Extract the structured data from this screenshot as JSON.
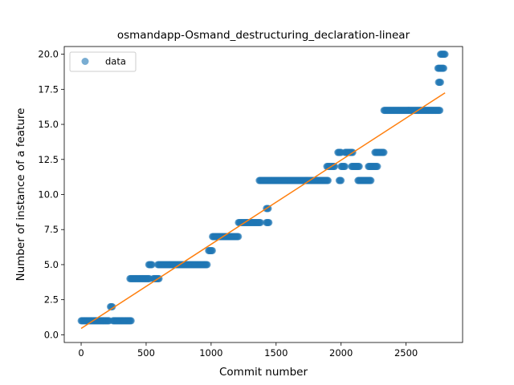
{
  "chart_data": {
    "type": "scatter",
    "title": "osmandapp-Osmand_destructuring_declaration-linear",
    "xlabel": "Commit number",
    "ylabel": "Number of instance of a feature",
    "xlim": [
      -130,
      2935
    ],
    "ylim": [
      -0.55,
      20.55
    ],
    "xticks": [
      0,
      500,
      1000,
      1500,
      2000,
      2500
    ],
    "xtick_labels": [
      "0",
      "500",
      "1000",
      "1500",
      "2000",
      "2500"
    ],
    "yticks": [
      0.0,
      2.5,
      5.0,
      7.5,
      10.0,
      12.5,
      15.0,
      17.5,
      20.0
    ],
    "ytick_labels": [
      "0.0",
      "2.5",
      "5.0",
      "7.5",
      "10.0",
      "12.5",
      "15.0",
      "17.5",
      "20.0"
    ],
    "grid": false,
    "legend_position": "upper-left",
    "series": [
      {
        "name": "data",
        "kind": "scatter",
        "color": "#1f77b4",
        "segments": [
          {
            "x_start": 0,
            "x_end": 215,
            "y": 1
          },
          {
            "x_start": 225,
            "x_end": 240,
            "y": 2
          },
          {
            "x_start": 245,
            "x_end": 385,
            "y": 1
          },
          {
            "x_start": 375,
            "x_end": 525,
            "y": 4
          },
          {
            "x_start": 520,
            "x_end": 545,
            "y": 5
          },
          {
            "x_start": 555,
            "x_end": 600,
            "y": 4
          },
          {
            "x_start": 590,
            "x_end": 970,
            "y": 5
          },
          {
            "x_start": 980,
            "x_end": 1010,
            "y": 6
          },
          {
            "x_start": 1010,
            "x_end": 1210,
            "y": 7
          },
          {
            "x_start": 1210,
            "x_end": 1380,
            "y": 8
          },
          {
            "x_start": 1425,
            "x_end": 1440,
            "y": 9
          },
          {
            "x_start": 1425,
            "x_end": 1445,
            "y": 8
          },
          {
            "x_start": 1370,
            "x_end": 1900,
            "y": 11
          },
          {
            "x_start": 1890,
            "x_end": 1950,
            "y": 12
          },
          {
            "x_start": 1975,
            "x_end": 2000,
            "y": 13
          },
          {
            "x_start": 1985,
            "x_end": 2000,
            "y": 11
          },
          {
            "x_start": 2000,
            "x_end": 2030,
            "y": 12
          },
          {
            "x_start": 2030,
            "x_end": 2090,
            "y": 13
          },
          {
            "x_start": 2080,
            "x_end": 2140,
            "y": 12
          },
          {
            "x_start": 2130,
            "x_end": 2230,
            "y": 11
          },
          {
            "x_start": 2210,
            "x_end": 2280,
            "y": 12
          },
          {
            "x_start": 2260,
            "x_end": 2330,
            "y": 13
          },
          {
            "x_start": 2330,
            "x_end": 2760,
            "y": 16
          },
          {
            "x_start": 2745,
            "x_end": 2765,
            "y": 19
          },
          {
            "x_start": 2750,
            "x_end": 2765,
            "y": 18
          },
          {
            "x_start": 2770,
            "x_end": 2790,
            "y": 19
          },
          {
            "x_start": 2765,
            "x_end": 2800,
            "y": 20
          }
        ]
      },
      {
        "name": "",
        "kind": "line",
        "color": "#ff7f0e",
        "x": [
          0,
          2800
        ],
        "y": [
          0.45,
          17.25
        ]
      }
    ]
  }
}
